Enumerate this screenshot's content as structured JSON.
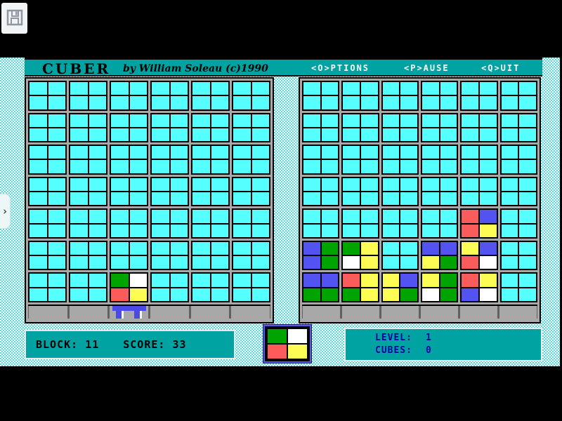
{
  "window": {
    "title": "CUBER",
    "byline": "by William Soleau  (c)1990",
    "menu": [
      {
        "label": "<O>PTIONS"
      },
      {
        "label": "<P>AUSE"
      },
      {
        "label": "<Q>UIT"
      }
    ]
  },
  "chrome": {
    "save_icon": "floppy-disk",
    "drawer_chevron": "›"
  },
  "colors": {
    "R": "#fa5c5c",
    "G": "#00a400",
    "B": "#5353f1",
    "Y": "#fcfc54",
    "W": "#ffffff",
    "empty": "#55ffff",
    "teal": "#00a2a2",
    "navy": "#0000a8",
    "gray": "#a8a8a8"
  },
  "chart_data": {
    "type": "table",
    "note": "game board state; each block is 2x2 sub-cells [TL,TR,BL,BR]; cols 1-6, rows 1-7 top-down",
    "left_board": {
      "cols": 6,
      "rows": 7,
      "blocks": [
        {
          "row": 7,
          "col": 3,
          "cells": [
            "G",
            "W",
            "R",
            "Y"
          ]
        }
      ],
      "platform_col": 3
    },
    "right_board": {
      "cols": 6,
      "rows": 7,
      "blocks": [
        {
          "row": 5,
          "col": 5,
          "cells": [
            "R",
            "B",
            "R",
            "Y"
          ]
        },
        {
          "row": 6,
          "col": 1,
          "cells": [
            "B",
            "G",
            "B",
            "G"
          ]
        },
        {
          "row": 6,
          "col": 2,
          "cells": [
            "G",
            "Y",
            "W",
            "Y"
          ]
        },
        {
          "row": 6,
          "col": 4,
          "cells": [
            "B",
            "B",
            "Y",
            "G"
          ]
        },
        {
          "row": 6,
          "col": 5,
          "cells": [
            "Y",
            "B",
            "R",
            "W"
          ]
        },
        {
          "row": 7,
          "col": 1,
          "cells": [
            "B",
            "B",
            "G",
            "G"
          ]
        },
        {
          "row": 7,
          "col": 2,
          "cells": [
            "R",
            "Y",
            "G",
            "Y"
          ]
        },
        {
          "row": 7,
          "col": 3,
          "cells": [
            "Y",
            "B",
            "Y",
            "G"
          ]
        },
        {
          "row": 7,
          "col": 4,
          "cells": [
            "Y",
            "G",
            "W",
            "G"
          ]
        },
        {
          "row": 7,
          "col": 5,
          "cells": [
            "R",
            "Y",
            "B",
            "W"
          ]
        }
      ],
      "platform_col": null
    }
  },
  "preview": {
    "cells": [
      "G",
      "W",
      "R",
      "Y"
    ]
  },
  "status": {
    "block_label": "BLOCK:",
    "block_value": "11",
    "score_label": "SCORE:",
    "score_value": "33"
  },
  "info": {
    "level_label": "LEVEL:",
    "level_value": "1",
    "cubes_label": "CUBES:",
    "cubes_value": "0"
  }
}
